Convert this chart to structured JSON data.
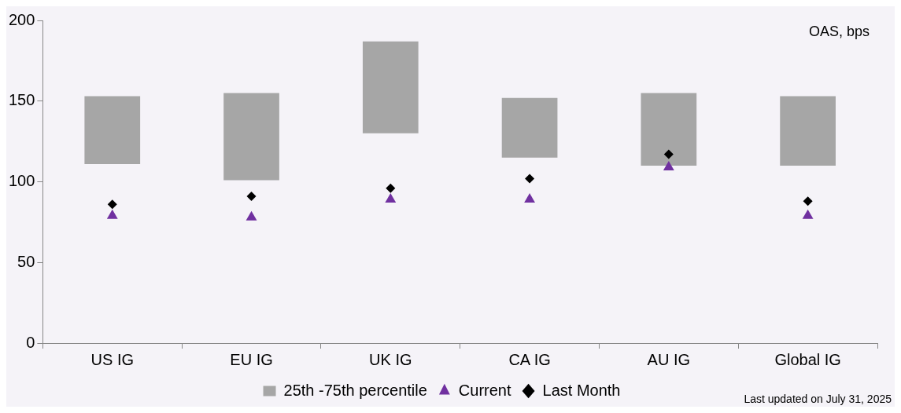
{
  "chart_data": {
    "type": "bar",
    "categories": [
      "US IG",
      "EU IG",
      "UK IG",
      "CA IG",
      "AU IG",
      "Global IG"
    ],
    "series": [
      {
        "name": "25th -75th percentile",
        "color": "#a6a6a6",
        "base": [
          111,
          101,
          130,
          115,
          110,
          110
        ],
        "values": [
          42,
          54,
          57,
          37,
          45,
          43
        ]
      },
      {
        "name": "Current",
        "type": "scatter",
        "marker": "triangle",
        "color": "#7030a0",
        "x": [
          "US IG",
          "EU IG",
          "UK IG",
          "CA IG",
          "AU IG",
          "Global IG"
        ],
        "values": [
          79,
          78,
          89,
          89,
          109,
          79
        ]
      },
      {
        "name": "Last Month",
        "type": "scatter",
        "marker": "diamond",
        "color": "#000000",
        "x": [
          "US IG",
          "EU IG",
          "UK IG",
          "CA IG",
          "AU IG",
          "Global IG"
        ],
        "values": [
          86,
          91,
          96,
          102,
          117,
          88
        ]
      }
    ],
    "ylim": [
      0,
      200
    ],
    "yticks": [
      0,
      50,
      100,
      150,
      200
    ],
    "grid": false,
    "legend": "bottom",
    "annotations": [
      "OAS, bps",
      "Last updated on July 31, 2025"
    ]
  }
}
